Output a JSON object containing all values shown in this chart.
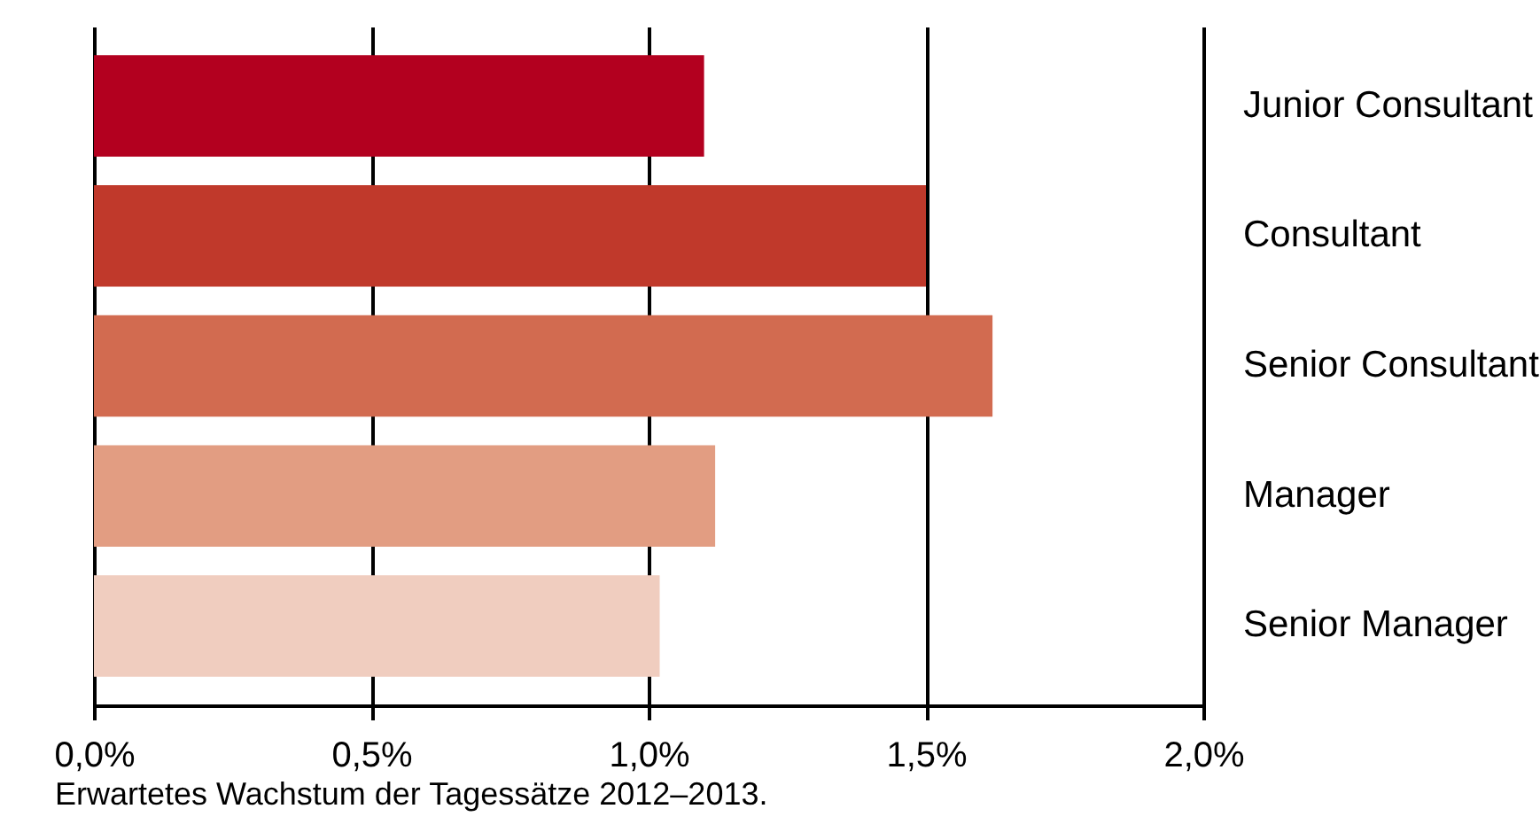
{
  "chart_data": {
    "type": "bar",
    "orientation": "horizontal",
    "categories": [
      "Junior Consultant",
      "Consultant",
      "Senior Consultant",
      "Manager",
      "Senior Manager"
    ],
    "values": [
      1.1,
      1.5,
      1.62,
      1.12,
      1.02
    ],
    "colors": [
      "#b3001f",
      "#c0392b",
      "#d26b50",
      "#e29d82",
      "#f0cdbf"
    ],
    "xlim": [
      0,
      2
    ],
    "xticks": [
      {
        "value": 0,
        "label": "0,0%"
      },
      {
        "value": 0.5,
        "label": "0,5%"
      },
      {
        "value": 1,
        "label": "1,0%"
      },
      {
        "value": 1.5,
        "label": "1,5%"
      },
      {
        "value": 2,
        "label": "2,0%"
      }
    ],
    "grid": "x",
    "annotations": [
      "Erwartetes Wachstum der Tagessätze 2012–2013."
    ]
  }
}
